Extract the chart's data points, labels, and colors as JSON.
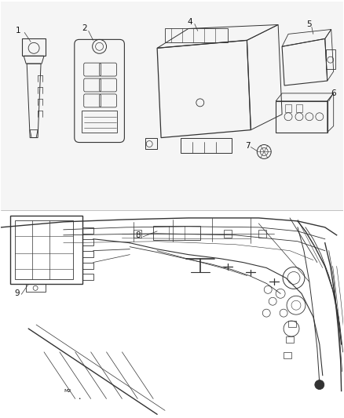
{
  "bg_color": "#ffffff",
  "line_color": "#333333",
  "label_color": "#111111",
  "figsize": [
    4.38,
    5.33
  ],
  "dpi": 100,
  "lw_main": 0.7,
  "lw_thick": 1.0,
  "lw_thin": 0.4,
  "label_fs": 7.0
}
